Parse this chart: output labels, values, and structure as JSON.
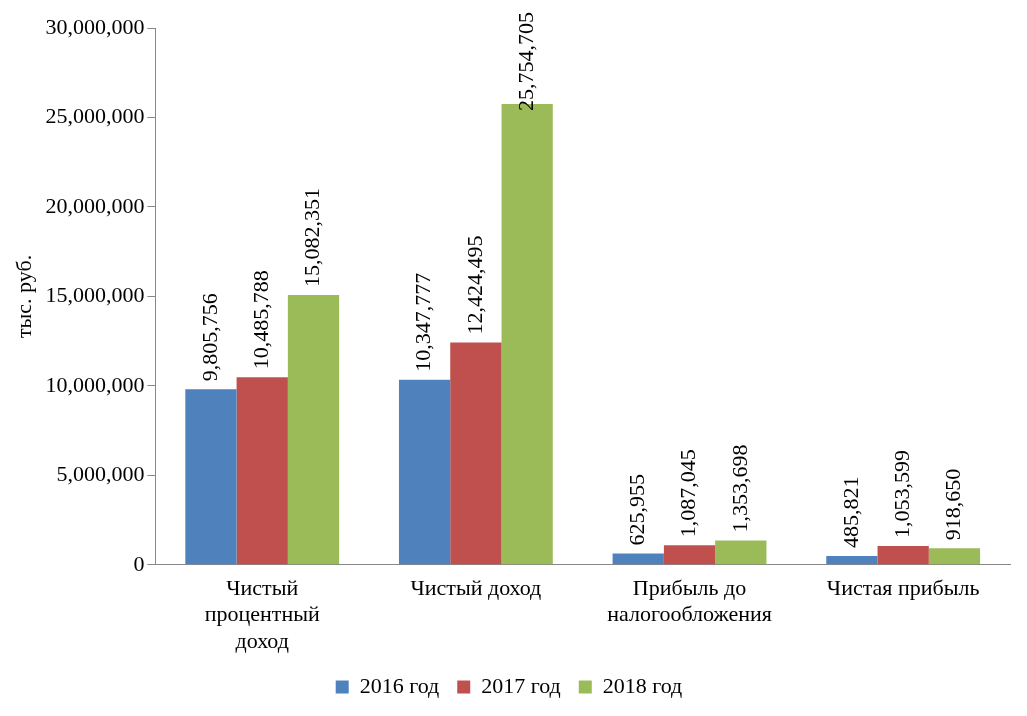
{
  "chart_data": {
    "type": "bar",
    "ylabel": "тыс. руб.",
    "categories": [
      "Чистый процентный доход",
      "Чистый доход",
      "Прибыль до налогообложения",
      "Чистая прибыль"
    ],
    "series": [
      {
        "name": "2016 год",
        "color": "#4f81bd",
        "values": [
          9805756,
          10347777,
          625955,
          485821
        ],
        "value_labels": [
          "9,805,756",
          "10,347,777",
          "625,955",
          "485,821"
        ]
      },
      {
        "name": "2017 год",
        "color": "#c0504d",
        "values": [
          10485788,
          12424495,
          1087045,
          1053599
        ],
        "value_labels": [
          "10,485,788",
          "12,424,495",
          "1,087,045",
          "1,053,599"
        ]
      },
      {
        "name": "2018 год",
        "color": "#9bbb59",
        "values": [
          15082351,
          25754705,
          1353698,
          918650
        ],
        "value_labels": [
          "15,082,351",
          "25,754,705",
          "1,353,698",
          "918,650"
        ]
      }
    ],
    "ylim": [
      0,
      30000000
    ],
    "yticks": [
      0,
      {
        "value": 5000000,
        "label": "5,000,000"
      },
      {
        "value": 10000000,
        "label": "10,000,000"
      },
      {
        "value": 15000000,
        "label": "15,000,000"
      },
      {
        "value": 20000000,
        "label": "20,000,000"
      },
      {
        "value": 25000000,
        "label": "25,000,000"
      },
      {
        "value": 30000000,
        "label": "30,000,000"
      }
    ],
    "grid": false,
    "legend": "bottom"
  }
}
